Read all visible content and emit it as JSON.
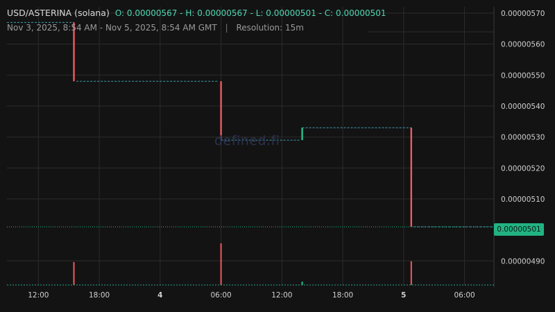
{
  "header": {
    "pair": "USD/ASTERINA (solana)",
    "ohlc": "O: 0.00000567 - H: 0.00000567 - L: 0.00000501 - C: 0.00000501",
    "range": "Nov 3, 2025, 8:54 AM - Nov 5, 2025, 8:54 AM GMT",
    "separator": "|",
    "resolution": "Resolution: 15m"
  },
  "watermark": "defined.fi",
  "last_price": "0.00000501",
  "colors": {
    "background": "#131313",
    "up": "#26c28f",
    "down": "#ef5a63",
    "grid": "#2c2c2c",
    "text": "#d0d0d0"
  },
  "chart_data": {
    "type": "candlestick",
    "xlabel": "",
    "ylabel": "",
    "grid": true,
    "x_ticks": [
      {
        "label": "12:00",
        "bold": false
      },
      {
        "label": "18:00",
        "bold": false
      },
      {
        "label": "4",
        "bold": true
      },
      {
        "label": "06:00",
        "bold": false
      },
      {
        "label": "12:00",
        "bold": false
      },
      {
        "label": "18:00",
        "bold": false
      },
      {
        "label": "5",
        "bold": true
      },
      {
        "label": "06:00",
        "bold": false
      }
    ],
    "y_ticks": [
      "0.00000490",
      "0.00000510",
      "0.00000520",
      "0.00000530",
      "0.00000540",
      "0.00000550",
      "0.00000560",
      "0.00000570"
    ],
    "ylim": [
      4.82e-06,
      5.72e-06
    ],
    "flat_segments": [
      {
        "from": "Nov 3 08:54",
        "to": "Nov 3 15:30",
        "price": 5.67e-06
      },
      {
        "from": "Nov 3 15:45",
        "to": "Nov 4 05:45",
        "price": 5.48e-06
      },
      {
        "from": "Nov 4 06:00",
        "to": "Nov 4 13:45",
        "price": 5.29e-06
      },
      {
        "from": "Nov 4 14:00",
        "to": "Nov 5 00:45",
        "price": 5.33e-06
      },
      {
        "from": "Nov 5 01:00",
        "to": "Nov 5 08:54",
        "price": 5.01e-06
      }
    ],
    "candles": [
      {
        "time": "Nov 3 15:30",
        "open": 5.67e-06,
        "high": 5.67e-06,
        "low": 5.48e-06,
        "close": 5.48e-06,
        "direction": "down"
      },
      {
        "time": "Nov 4 06:00",
        "open": 5.48e-06,
        "high": 5.48e-06,
        "low": 5.29e-06,
        "close": 5.29e-06,
        "direction": "down"
      },
      {
        "time": "Nov 4 14:00",
        "open": 5.29e-06,
        "high": 5.33e-06,
        "low": 5.29e-06,
        "close": 5.33e-06,
        "direction": "up"
      },
      {
        "time": "Nov 5 00:45",
        "open": 5.33e-06,
        "high": 5.33e-06,
        "low": 5.01e-06,
        "close": 5.01e-06,
        "direction": "down"
      }
    ],
    "volume": [
      {
        "time": "Nov 3 15:30",
        "relative": 0.55,
        "direction": "down"
      },
      {
        "time": "Nov 4 06:00",
        "relative": 1.0,
        "direction": "down"
      },
      {
        "time": "Nov 4 14:00",
        "relative": 0.08,
        "direction": "up"
      },
      {
        "time": "Nov 5 00:45",
        "relative": 0.57,
        "direction": "down"
      }
    ]
  }
}
